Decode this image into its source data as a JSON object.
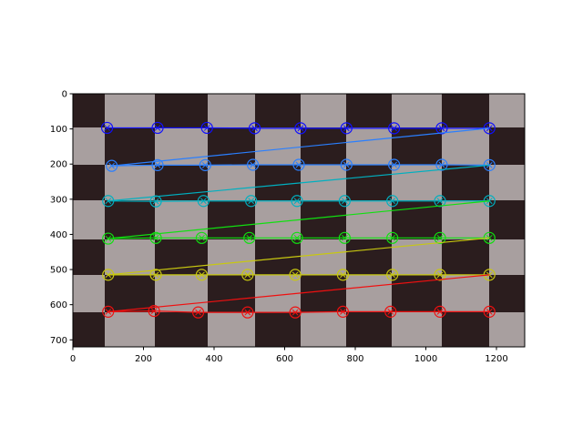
{
  "chart_data": {
    "type": "line",
    "xlim": [
      0,
      1280
    ],
    "ylim": [
      0,
      720
    ],
    "y_inverted": true,
    "xticks": [
      0,
      200,
      400,
      600,
      800,
      1000,
      1200
    ],
    "yticks": [
      0,
      100,
      200,
      300,
      400,
      500,
      600,
      700
    ],
    "series": [
      {
        "color": "#1010ff",
        "x": [
          97,
          240,
          380,
          515,
          645,
          775,
          910,
          1045,
          1180
        ],
        "values": [
          97,
          97,
          97,
          98,
          98,
          98,
          98,
          98,
          98
        ]
      },
      {
        "color": "#2a7fff",
        "x": [
          110,
          240,
          375,
          510,
          640,
          775,
          910,
          1045,
          1180
        ],
        "values": [
          205,
          203,
          203,
          202,
          202,
          202,
          202,
          202,
          203
        ]
      },
      {
        "color": "#00b0c0",
        "x": [
          100,
          235,
          370,
          505,
          635,
          770,
          905,
          1040,
          1180
        ],
        "values": [
          305,
          306,
          305,
          305,
          305,
          305,
          305,
          305,
          305
        ]
      },
      {
        "color": "#10e010",
        "x": [
          100,
          235,
          365,
          500,
          635,
          770,
          905,
          1040,
          1180
        ],
        "values": [
          412,
          410,
          410,
          410,
          410,
          410,
          410,
          410,
          410
        ]
      },
      {
        "color": "#c8c810",
        "x": [
          100,
          235,
          365,
          495,
          630,
          765,
          905,
          1040,
          1180
        ],
        "values": [
          515,
          515,
          515,
          515,
          515,
          515,
          515,
          515,
          515
        ]
      },
      {
        "color": "#f01010",
        "x": [
          100,
          230,
          355,
          495,
          630,
          765,
          900,
          1040,
          1180
        ],
        "values": [
          620,
          618,
          622,
          622,
          622,
          620,
          620,
          620,
          620
        ]
      }
    ]
  }
}
